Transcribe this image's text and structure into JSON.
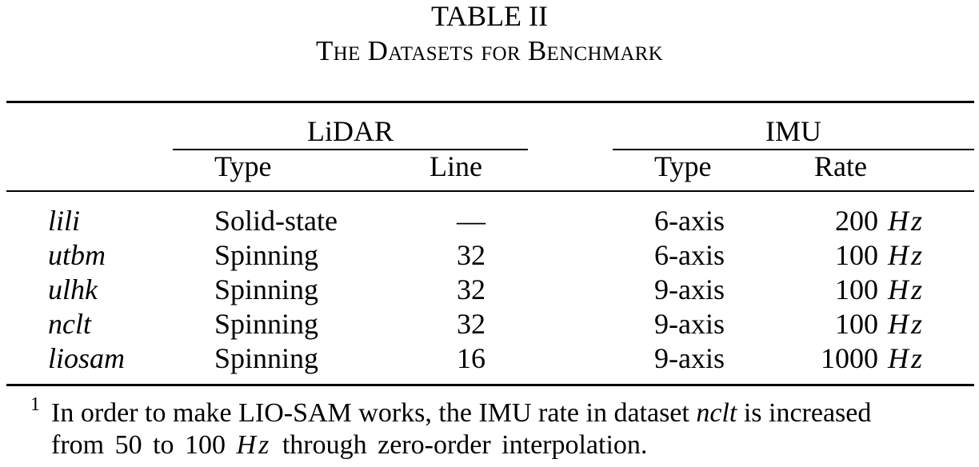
{
  "table": {
    "label": "TABLE II",
    "caption": "The Datasets for Benchmark",
    "group_headers": {
      "lidar": "LiDAR",
      "imu": "IMU"
    },
    "sub_headers": {
      "lidar_type": "Type",
      "lidar_line": "Line",
      "imu_type": "Type",
      "imu_rate": "Rate"
    },
    "rows": [
      {
        "dataset": "lili",
        "lidar_type": "Solid-state",
        "line": "—",
        "imu_type": "6-axis",
        "rate": "200",
        "unit": "Hz"
      },
      {
        "dataset": "utbm",
        "lidar_type": "Spinning",
        "line": "32",
        "imu_type": "6-axis",
        "rate": "100",
        "unit": "Hz"
      },
      {
        "dataset": "ulhk",
        "lidar_type": "Spinning",
        "line": "32",
        "imu_type": "9-axis",
        "rate": "100",
        "unit": "Hz"
      },
      {
        "dataset": "nclt",
        "lidar_type": "Spinning",
        "line": "32",
        "imu_type": "9-axis",
        "rate": "100",
        "unit": "Hz"
      },
      {
        "dataset": "liosam",
        "lidar_type": "Spinning",
        "line": "16",
        "imu_type": "9-axis",
        "rate": "1000",
        "unit": "Hz"
      }
    ],
    "footnote": {
      "mark": "1",
      "line1_a": "In order to make LIO-SAM works, the IMU rate in dataset ",
      "line1_italic": "nclt",
      "line1_b": " is increased",
      "line2_a": "from 50 to 100 ",
      "line2_unit": "Hz",
      "line2_b": " through zero-order interpolation."
    }
  }
}
